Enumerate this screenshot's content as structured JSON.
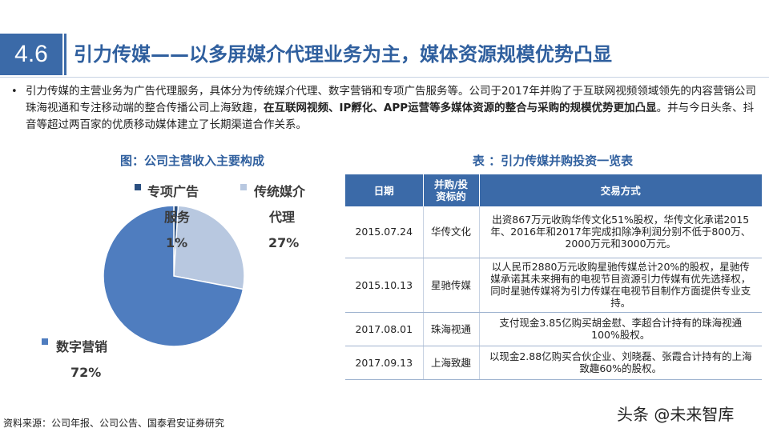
{
  "header": {
    "section_number": "4.6",
    "title": "引力传媒——以多屏媒介代理业务为主，媒体资源规模优势凸显"
  },
  "intro": {
    "bullet": "•",
    "text_part1": "引力传媒的主营业务为广告代理服务，具体分为传统媒介代理、数字营销和专项广告服务等。公司于2017年并购了于互联网视频领域领先的内容营销公司珠海视通和专注移动端的整合传播公司上海致趣，",
    "text_bold": "在互联网视频、IP孵化、APP运营等多媒体资源的整合与采购的规模优势更加凸显",
    "text_part2": "。并与今日头条、抖音等超过两百家的优质移动媒体建立了长期渠道合作关系。"
  },
  "chart_title": "图：公司主营收入主要构成",
  "chart_data": {
    "type": "pie",
    "series": [
      {
        "name_line1": "数字营销",
        "name_line2": "",
        "value": 72,
        "label": "72%",
        "color": "#4f7dbf"
      },
      {
        "name_line1": "传统媒介",
        "name_line2": "代理",
        "value": 27,
        "label": "27%",
        "color": "#b8c8e0"
      },
      {
        "name_line1": "专项广告",
        "name_line2": "服务",
        "value": 1,
        "label": "1%",
        "color": "#2a4f80"
      }
    ]
  },
  "table_title": "表 ：引力传媒并购投资一览表",
  "table": {
    "headers": [
      "日期",
      "并购/投资标的",
      "交易方式"
    ],
    "header_target_line1": "并购/投",
    "header_target_line2": "资标的",
    "rows": [
      {
        "date": "2015.07.24",
        "target": "华传文化",
        "deal": "出资867万元收购华传文化51%股权，华传文化承诺2015年、2016年和2017年完成扣除净利润分别不低于800万、2000万元和3000万元。"
      },
      {
        "date": "2015.10.13",
        "target": "星驰传媒",
        "deal": "以人民币2880万元收购星驰传媒总计20%的股权，星驰传媒承诺其未来拥有的电视节目资源引力传媒有优先选择权，同时星驰传媒将为引力传媒在电视节目制作方面提供专业支持。"
      },
      {
        "date": "2017.08.01",
        "target": "珠海视通",
        "deal": "支付现金3.85亿购买胡金慰、李超合计持有的珠海视通100%股权。"
      },
      {
        "date": "2017.09.13",
        "target": "上海致趣",
        "deal": "以现金2.88亿购买合伙企业、刘晓磊、张霞合计持有的上海致趣60%的股权。"
      }
    ]
  },
  "source": "资料来源：公司年报、公司公告、国泰君安证券研究",
  "watermark": "头条 @未来智库"
}
